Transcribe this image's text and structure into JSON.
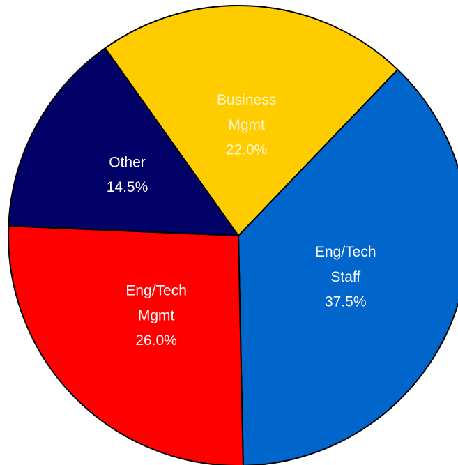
{
  "chart_data": {
    "type": "pie",
    "categories": [
      "Eng/Tech Staff",
      "Eng/Tech Mgmt",
      "Other",
      "Business Mgmt"
    ],
    "values": [
      37.5,
      26.0,
      14.5,
      22.0
    ],
    "value_labels": [
      "37.5%",
      "26.0%",
      "14.5%",
      "22.0%"
    ],
    "colors": [
      "#0066cc",
      "#ff0000",
      "#000066",
      "#ffcc00"
    ],
    "label_colors": [
      "#ffffff",
      "#ffffff",
      "#ffffff",
      "#fff4c8"
    ]
  }
}
